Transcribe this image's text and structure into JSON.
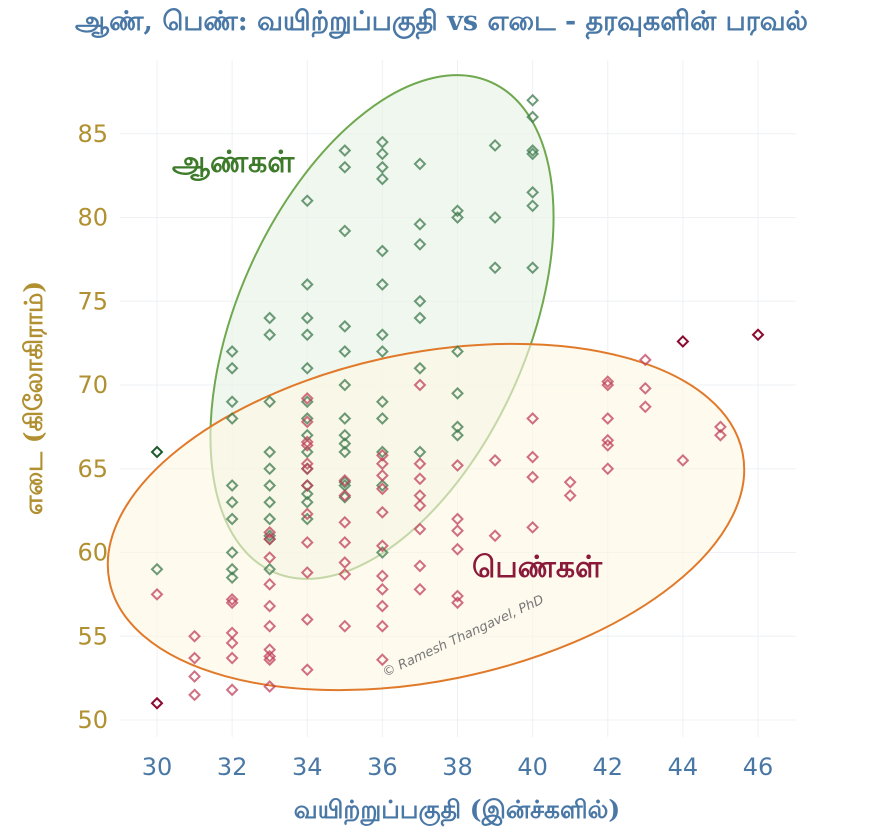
{
  "title": "ஆண், பெண்: வயிற்றுப்பகுதி vs எடை - தரவுகளின் பரவல்",
  "chart_data": {
    "type": "scatter",
    "xlabel": "வயிற்றுப்பகுதி (இன்ச்களில்)",
    "ylabel": "எடை (கிலோகிராம்)",
    "xlim": [
      29,
      47
    ],
    "ylim": [
      49,
      89
    ],
    "xticks": [
      30,
      32,
      34,
      36,
      38,
      40,
      42,
      44,
      46
    ],
    "yticks": [
      50,
      55,
      60,
      65,
      70,
      75,
      80,
      85
    ],
    "grid": true,
    "colors": {
      "men_marker": "#3d7a4e",
      "men_marker_outlier": "#1e5a2e",
      "men_ellipse_stroke": "#6fa84f",
      "men_ellipse_fill": "#e8f2e6",
      "women_marker": "#c0405a",
      "women_marker_outlier": "#8b0a2e",
      "women_ellipse_stroke": "#e07a2a",
      "women_ellipse_fill": "#fdf6e3",
      "men_label": "#3d7a2a",
      "women_label": "#8b1a3a"
    },
    "annotations": {
      "men": "ஆண்கள்",
      "women": "பெண்கள்",
      "watermark": "© Ramesh Thangavel, PhD"
    },
    "series": [
      {
        "group": "men",
        "points": [
          [
            30,
            66
          ],
          [
            30,
            59
          ],
          [
            32,
            72
          ],
          [
            32,
            71
          ],
          [
            32,
            69
          ],
          [
            32,
            68
          ],
          [
            32,
            64
          ],
          [
            32,
            63
          ],
          [
            32,
            62
          ],
          [
            32,
            60
          ],
          [
            32,
            59
          ],
          [
            32,
            58.5
          ],
          [
            33,
            74
          ],
          [
            33,
            73
          ],
          [
            33,
            69
          ],
          [
            33,
            66
          ],
          [
            33,
            65
          ],
          [
            33,
            64
          ],
          [
            33,
            63
          ],
          [
            33,
            62
          ],
          [
            33,
            61
          ],
          [
            33,
            60.8
          ],
          [
            33,
            59
          ],
          [
            34,
            81
          ],
          [
            34,
            76
          ],
          [
            34,
            74
          ],
          [
            34,
            73
          ],
          [
            34,
            71
          ],
          [
            34,
            69
          ],
          [
            34,
            68
          ],
          [
            34,
            67
          ],
          [
            34,
            66
          ],
          [
            34,
            65
          ],
          [
            34,
            64
          ],
          [
            34,
            63.5
          ],
          [
            34,
            63
          ],
          [
            34,
            62
          ],
          [
            35,
            84
          ],
          [
            35,
            83
          ],
          [
            35,
            79.2
          ],
          [
            35,
            73.5
          ],
          [
            35,
            72
          ],
          [
            35,
            70
          ],
          [
            35,
            68
          ],
          [
            35,
            67
          ],
          [
            35,
            66.5
          ],
          [
            35,
            66
          ],
          [
            35,
            64.2
          ],
          [
            35,
            64
          ],
          [
            35,
            63.3
          ],
          [
            36,
            84.5
          ],
          [
            36,
            83.8
          ],
          [
            36,
            83
          ],
          [
            36,
            82.3
          ],
          [
            36,
            78
          ],
          [
            36,
            76
          ],
          [
            36,
            73
          ],
          [
            36,
            72
          ],
          [
            36,
            69
          ],
          [
            36,
            68
          ],
          [
            36,
            66
          ],
          [
            36,
            64
          ],
          [
            36,
            60
          ],
          [
            37,
            83.2
          ],
          [
            37,
            79.6
          ],
          [
            37,
            78.4
          ],
          [
            37,
            75
          ],
          [
            37,
            74
          ],
          [
            37,
            71
          ],
          [
            37,
            66
          ],
          [
            38,
            80.4
          ],
          [
            38,
            80
          ],
          [
            38,
            72
          ],
          [
            38,
            69.5
          ],
          [
            38,
            67.5
          ],
          [
            38,
            67
          ],
          [
            39,
            84.3
          ],
          [
            39,
            80
          ],
          [
            39,
            77
          ],
          [
            40,
            87
          ],
          [
            40,
            86
          ],
          [
            40,
            84
          ],
          [
            40,
            83.8
          ],
          [
            40,
            81.5
          ],
          [
            40,
            80.7
          ],
          [
            40,
            77
          ]
        ]
      },
      {
        "group": "women",
        "points": [
          [
            30,
            57.5
          ],
          [
            30,
            51
          ],
          [
            31,
            55
          ],
          [
            31,
            53.7
          ],
          [
            31,
            52.6
          ],
          [
            31,
            51.5
          ],
          [
            32,
            57.2
          ],
          [
            32,
            57
          ],
          [
            32,
            55.2
          ],
          [
            32,
            54.6
          ],
          [
            32,
            53.7
          ],
          [
            32,
            51.8
          ],
          [
            33,
            61.2
          ],
          [
            33,
            60.8
          ],
          [
            33,
            59.7
          ],
          [
            33,
            58.1
          ],
          [
            33,
            56.8
          ],
          [
            33,
            55.6
          ],
          [
            33,
            54.2
          ],
          [
            33,
            53.8
          ],
          [
            33,
            53.6
          ],
          [
            33,
            52
          ],
          [
            34,
            69.2
          ],
          [
            34,
            67.8
          ],
          [
            34,
            66.6
          ],
          [
            34,
            66.4
          ],
          [
            34,
            65.3
          ],
          [
            34,
            65
          ],
          [
            34,
            64
          ],
          [
            34,
            62.3
          ],
          [
            34,
            60.6
          ],
          [
            34,
            58.8
          ],
          [
            34,
            56
          ],
          [
            34,
            53
          ],
          [
            35,
            64.3
          ],
          [
            35,
            63.4
          ],
          [
            35,
            61.8
          ],
          [
            35,
            60.6
          ],
          [
            35,
            59.4
          ],
          [
            35,
            58.7
          ],
          [
            35,
            55.6
          ],
          [
            36,
            65.8
          ],
          [
            36,
            65.3
          ],
          [
            36,
            64.6
          ],
          [
            36,
            63.8
          ],
          [
            36,
            62.4
          ],
          [
            36,
            60.4
          ],
          [
            36,
            58.6
          ],
          [
            36,
            57.8
          ],
          [
            36,
            56.8
          ],
          [
            36,
            55.6
          ],
          [
            36,
            53.6
          ],
          [
            37,
            70
          ],
          [
            37,
            65.3
          ],
          [
            37,
            64.4
          ],
          [
            37,
            63.4
          ],
          [
            37,
            62.8
          ],
          [
            37,
            61.4
          ],
          [
            37,
            59.2
          ],
          [
            37,
            57.8
          ],
          [
            38,
            65.2
          ],
          [
            38,
            62
          ],
          [
            38,
            61.3
          ],
          [
            38,
            60.2
          ],
          [
            38,
            57.4
          ],
          [
            38,
            57
          ],
          [
            39,
            65.5
          ],
          [
            39,
            61
          ],
          [
            40,
            68
          ],
          [
            40,
            65.7
          ],
          [
            40,
            64.5
          ],
          [
            40,
            61.5
          ],
          [
            41,
            64.2
          ],
          [
            41,
            63.4
          ],
          [
            42,
            70.2
          ],
          [
            42,
            70
          ],
          [
            42,
            68
          ],
          [
            42,
            66.7
          ],
          [
            42,
            66.4
          ],
          [
            42,
            65
          ],
          [
            43,
            71.5
          ],
          [
            43,
            69.8
          ],
          [
            43,
            68.7
          ],
          [
            44,
            72.6
          ],
          [
            44,
            65.5
          ],
          [
            45,
            67.5
          ],
          [
            45,
            67
          ],
          [
            46,
            73
          ]
        ]
      }
    ]
  }
}
